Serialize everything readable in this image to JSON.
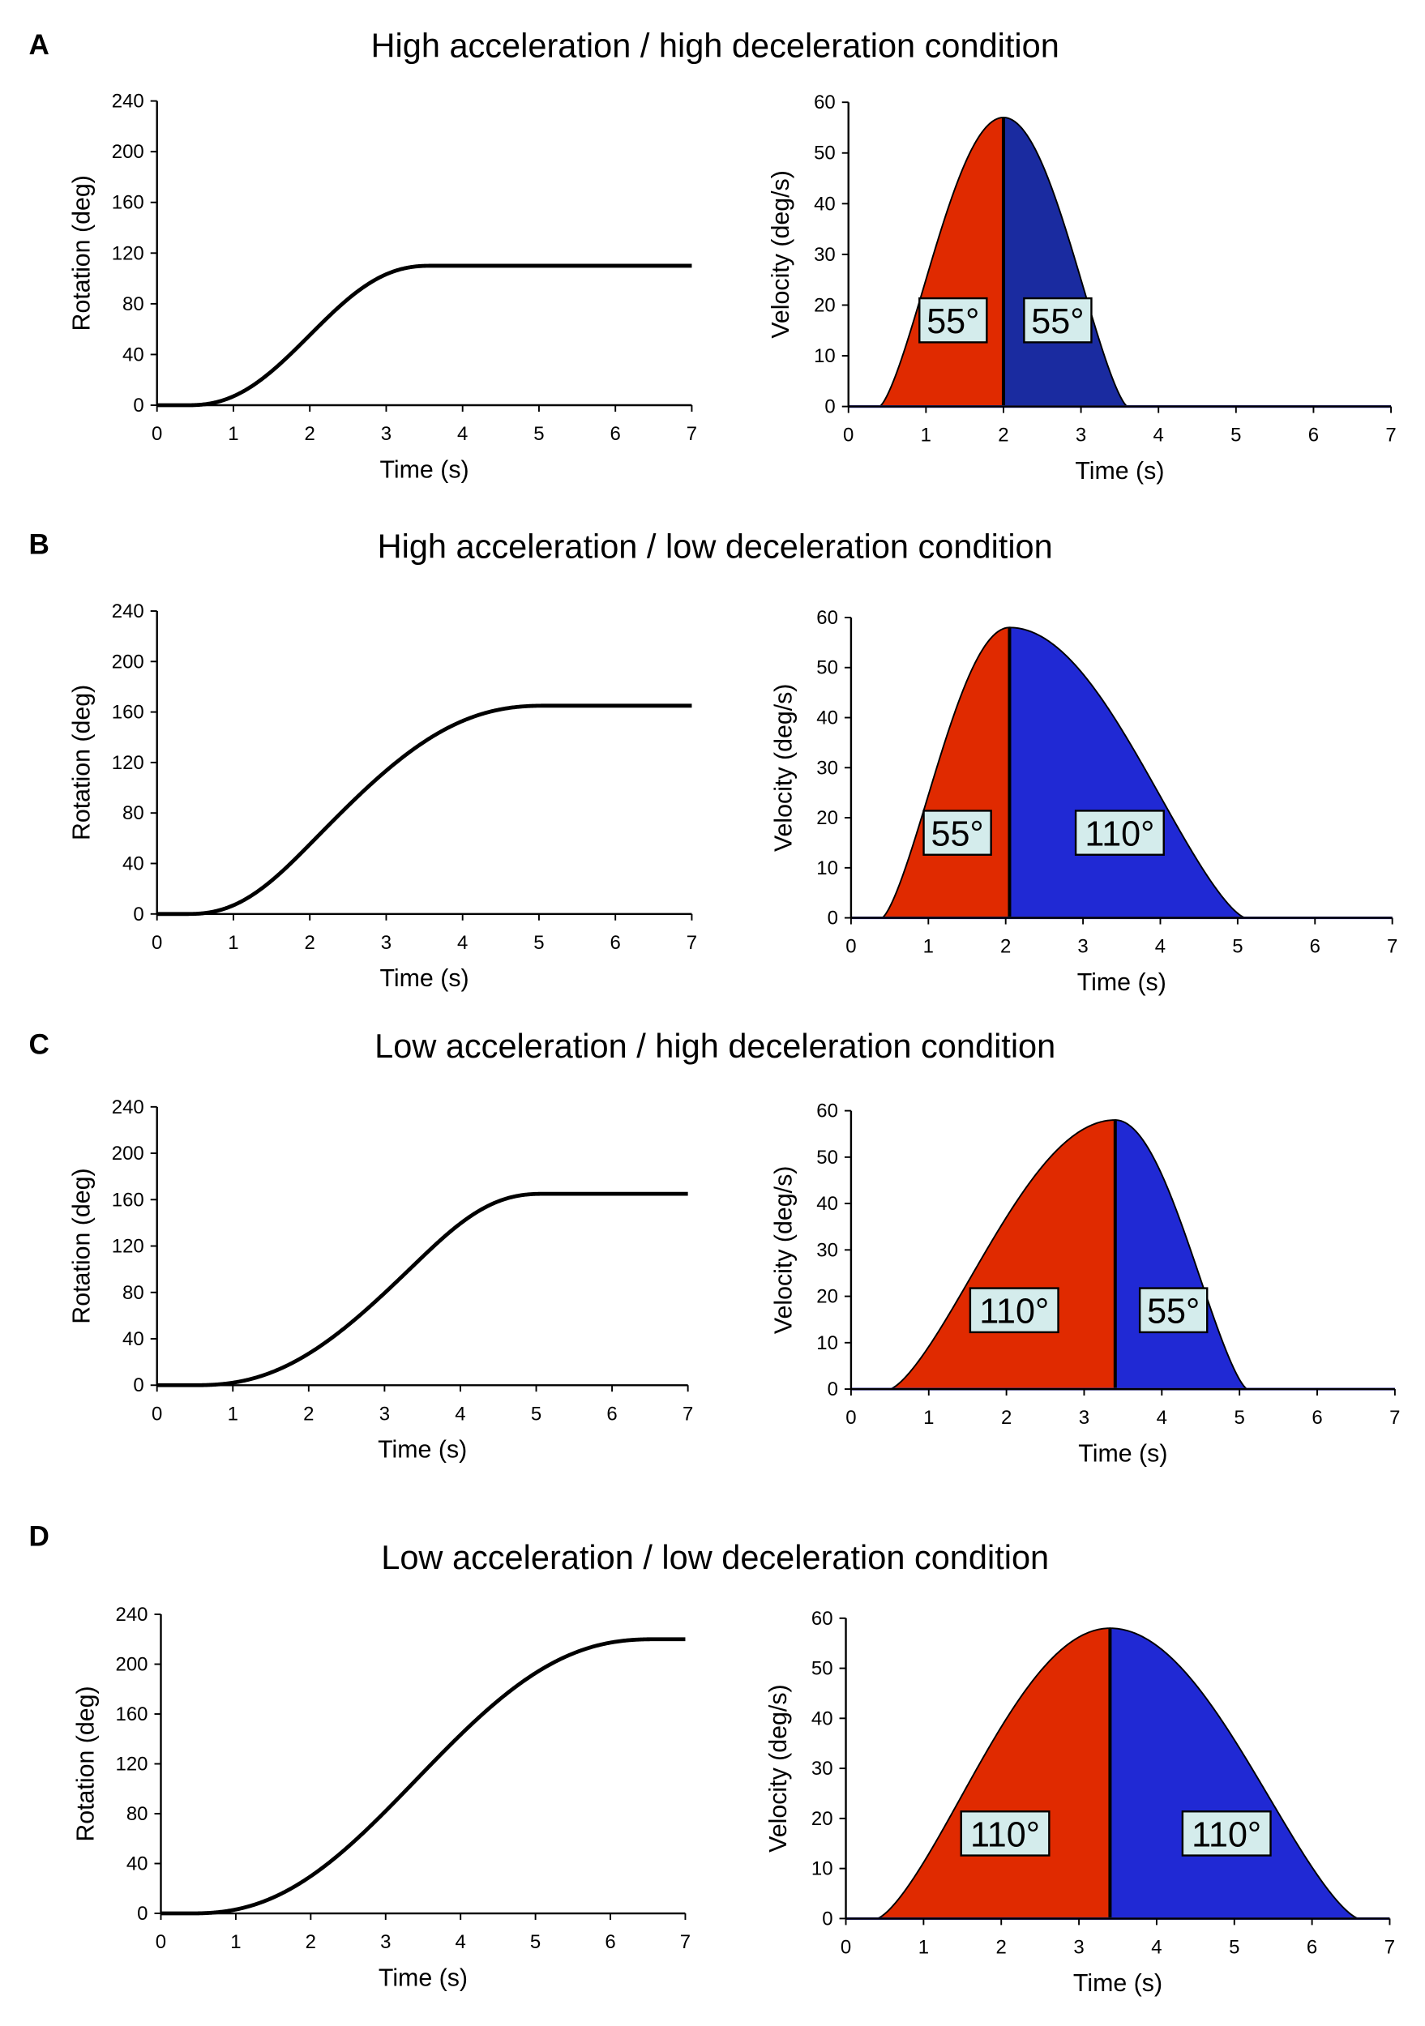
{
  "colors": {
    "accel": "#e02a00",
    "decel_A": "#1a2ba0",
    "decel": "#2029d4",
    "label_bg": "#d4ecec",
    "line": "#000000"
  },
  "chart_data": [
    {
      "panel": "A",
      "title": "High acceleration / high deceleration condition",
      "rotation": {
        "type": "line",
        "xlabel": "Time (s)",
        "ylabel": "Rotation (deg)",
        "xlim": [
          0,
          7
        ],
        "ylim": [
          0,
          240
        ],
        "xticks": [
          "0",
          "1",
          "2",
          "3",
          "4",
          "5",
          "6",
          "7"
        ],
        "yticks": [
          "0",
          "40",
          "80",
          "120",
          "160",
          "200",
          "240"
        ],
        "final_deg": 110
      },
      "velocity": {
        "type": "area",
        "xlabel": "Time (s)",
        "ylabel": "Velocity (deg/s)",
        "xlim": [
          0,
          7
        ],
        "ylim": [
          0,
          60
        ],
        "xticks": [
          "0",
          "1",
          "2",
          "3",
          "4",
          "5",
          "6",
          "7"
        ],
        "yticks": [
          "0",
          "10",
          "20",
          "30",
          "40",
          "50",
          "60"
        ],
        "onset_s": 0.4,
        "peak_s": 2.0,
        "end_s": 3.6,
        "peak_deg_s": 57,
        "accel_label": "55°",
        "decel_label": "55°"
      }
    },
    {
      "panel": "B",
      "title": "High acceleration / low deceleration condition",
      "rotation": {
        "type": "line",
        "xlabel": "Time (s)",
        "ylabel": "Rotation (deg)",
        "xlim": [
          0,
          7
        ],
        "ylim": [
          0,
          240
        ],
        "xticks": [
          "0",
          "1",
          "2",
          "3",
          "4",
          "5",
          "6",
          "7"
        ],
        "yticks": [
          "0",
          "40",
          "80",
          "120",
          "160",
          "200",
          "240"
        ],
        "final_deg": 165
      },
      "velocity": {
        "type": "area",
        "xlabel": "Time (s)",
        "ylabel": "Velocity (deg/s)",
        "xlim": [
          0,
          7
        ],
        "ylim": [
          0,
          60
        ],
        "xticks": [
          "0",
          "1",
          "2",
          "3",
          "4",
          "5",
          "6",
          "7"
        ],
        "yticks": [
          "0",
          "10",
          "20",
          "30",
          "40",
          "50",
          "60"
        ],
        "onset_s": 0.4,
        "peak_s": 2.05,
        "end_s": 5.1,
        "peak_deg_s": 58,
        "accel_label": "55°",
        "decel_label": "110°"
      }
    },
    {
      "panel": "C",
      "title": "Low acceleration / high deceleration condition",
      "rotation": {
        "type": "line",
        "xlabel": "Time (s)",
        "ylabel": "Rotation (deg)",
        "xlim": [
          0,
          7
        ],
        "ylim": [
          0,
          240
        ],
        "xticks": [
          "0",
          "1",
          "2",
          "3",
          "4",
          "5",
          "6",
          "7"
        ],
        "yticks": [
          "0",
          "40",
          "80",
          "120",
          "160",
          "200",
          "240"
        ],
        "final_deg": 165
      },
      "velocity": {
        "type": "area",
        "xlabel": "Time (s)",
        "ylabel": "Velocity (deg/s)",
        "xlim": [
          0,
          7
        ],
        "ylim": [
          0,
          60
        ],
        "xticks": [
          "0",
          "1",
          "2",
          "3",
          "4",
          "5",
          "6",
          "7"
        ],
        "yticks": [
          "0",
          "10",
          "20",
          "30",
          "40",
          "50",
          "60"
        ],
        "onset_s": 0.5,
        "peak_s": 3.4,
        "end_s": 5.1,
        "peak_deg_s": 58,
        "accel_label": "110°",
        "decel_label": "55°"
      }
    },
    {
      "panel": "D",
      "title": "Low acceleration / low deceleration condition",
      "rotation": {
        "type": "line",
        "xlabel": "Time (s)",
        "ylabel": "Rotation (deg)",
        "xlim": [
          0,
          7
        ],
        "ylim": [
          0,
          240
        ],
        "xticks": [
          "0",
          "1",
          "2",
          "3",
          "4",
          "5",
          "6",
          "7"
        ],
        "yticks": [
          "0",
          "40",
          "80",
          "120",
          "160",
          "200",
          "240"
        ],
        "final_deg": 220
      },
      "velocity": {
        "type": "area",
        "xlabel": "Time (s)",
        "ylabel": "Velocity (deg/s)",
        "xlim": [
          0,
          7
        ],
        "ylim": [
          0,
          60
        ],
        "xticks": [
          "0",
          "1",
          "2",
          "3",
          "4",
          "5",
          "6",
          "7"
        ],
        "yticks": [
          "0",
          "10",
          "20",
          "30",
          "40",
          "50",
          "60"
        ],
        "onset_s": 0.4,
        "peak_s": 3.4,
        "end_s": 6.6,
        "peak_deg_s": 58,
        "accel_label": "110°",
        "decel_label": "110°"
      }
    }
  ]
}
